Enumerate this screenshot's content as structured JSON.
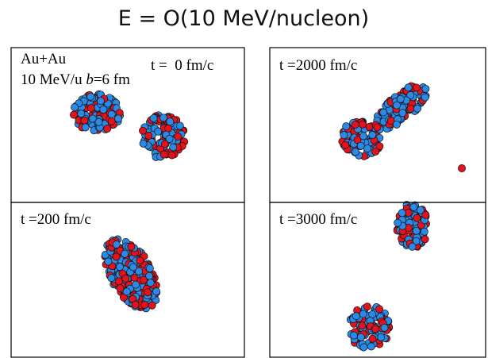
{
  "title": "E = O(10 MeV/nucleon)",
  "panels": [
    {
      "labels": [
        "Au+Au",
        "t =  0 fm/c"
      ],
      "energy": [
        "10 MeV/u ",
        "b",
        "=6 fm"
      ]
    },
    {
      "labels": [
        "t =2000 fm/c"
      ]
    },
    {
      "labels": [
        "t =200 fm/c"
      ]
    },
    {
      "labels": [
        "t =3000 fm/c"
      ]
    }
  ]
}
